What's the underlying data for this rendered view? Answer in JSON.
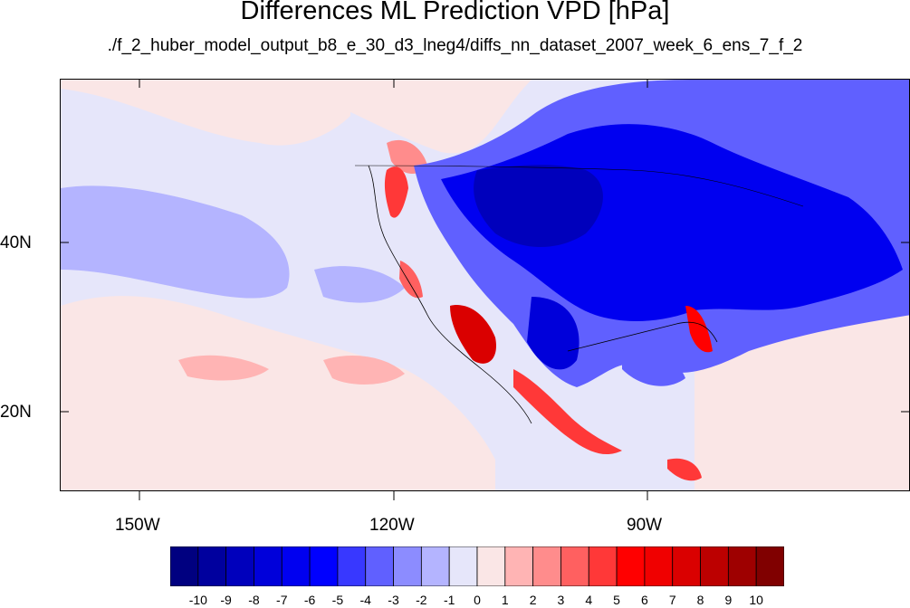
{
  "title": "Differences ML Prediction VPD [hPa]",
  "subtitle": "./f_2_huber_model_output_b8_e_30_d3_lneg4/diffs_nn_dataset_2007_week_6_ens_7_f_2",
  "map": {
    "lat_labels": [
      "40N",
      "20N"
    ],
    "lon_labels": [
      "150W",
      "120W",
      "90W"
    ],
    "background_color": "#e8e8fa"
  },
  "colorbar": {
    "labels": [
      "-10",
      "-9",
      "-8",
      "-7",
      "-6",
      "-5",
      "-4",
      "-3",
      "-2",
      "-1",
      "0",
      "1",
      "2",
      "3",
      "4",
      "5",
      "6",
      "7",
      "8",
      "9",
      "10"
    ],
    "colors": [
      "#000080",
      "#00009e",
      "#0000bc",
      "#0000da",
      "#0000f0",
      "#0000ff",
      "#3838ff",
      "#6060ff",
      "#8c8cff",
      "#b4b4ff",
      "#e6e6fa",
      "#fae6e6",
      "#ffb4b4",
      "#ff8c8c",
      "#ff6060",
      "#ff3838",
      "#ff0000",
      "#f00000",
      "#da0000",
      "#bc0000",
      "#9e0000",
      "#800000"
    ]
  }
}
